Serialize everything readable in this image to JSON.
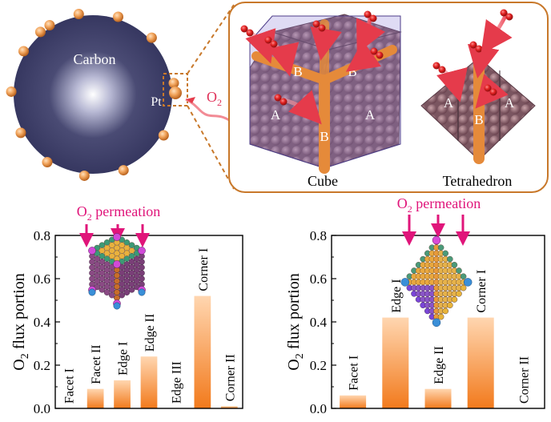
{
  "schematic": {
    "carbon_label": "Carbon",
    "pt_label": "Pt",
    "o2_label": "O",
    "o2_sub": "2",
    "cube_label": "Cube",
    "tetra_label": "Tetrahedron",
    "site_a": "A",
    "site_b": "B"
  },
  "colors": {
    "carbon": "#3d3e66",
    "pt_particle": "#e88f3c",
    "callout": "#c8782a",
    "permeation": "#e0157a",
    "bar_top": "#ffd2a6",
    "bar_bottom": "#f5781e",
    "o2_atom": "#d42020",
    "pt_atom": "#9a6a72"
  },
  "chart_data": [
    {
      "type": "bar",
      "title": "O2 permeation",
      "title_main": "O",
      "title_sub": "2",
      "title_rest": " permeation",
      "ylabel_main": "O",
      "ylabel_sub": "2",
      "ylabel_rest": " flux portion",
      "ylim": [
        0,
        0.8
      ],
      "yticks": [
        "0.0",
        "0.2",
        "0.4",
        "0.6",
        "0.8"
      ],
      "categories": [
        "Facet I",
        "Facet II",
        "Edge I",
        "Edge II",
        "Edge III",
        "Corner I",
        "Corner II"
      ],
      "values": [
        0.0,
        0.09,
        0.13,
        0.24,
        0.0,
        0.52,
        0.01
      ],
      "inset": "cube nanoparticle"
    },
    {
      "type": "bar",
      "title": "O2 permeation",
      "title_main": "O",
      "title_sub": "2",
      "title_rest": " permeation",
      "ylabel_main": "O",
      "ylabel_sub": "2",
      "ylabel_rest": " flux portion",
      "ylim": [
        0,
        0.8
      ],
      "yticks": [
        "0.0",
        "0.2",
        "0.4",
        "0.6",
        "0.8"
      ],
      "categories": [
        "Facet I",
        "Edge I",
        "Edge II",
        "Corner I",
        "Corner II"
      ],
      "values": [
        0.06,
        0.42,
        0.09,
        0.42,
        0.0
      ],
      "inset": "tetrahedron nanoparticle"
    }
  ]
}
